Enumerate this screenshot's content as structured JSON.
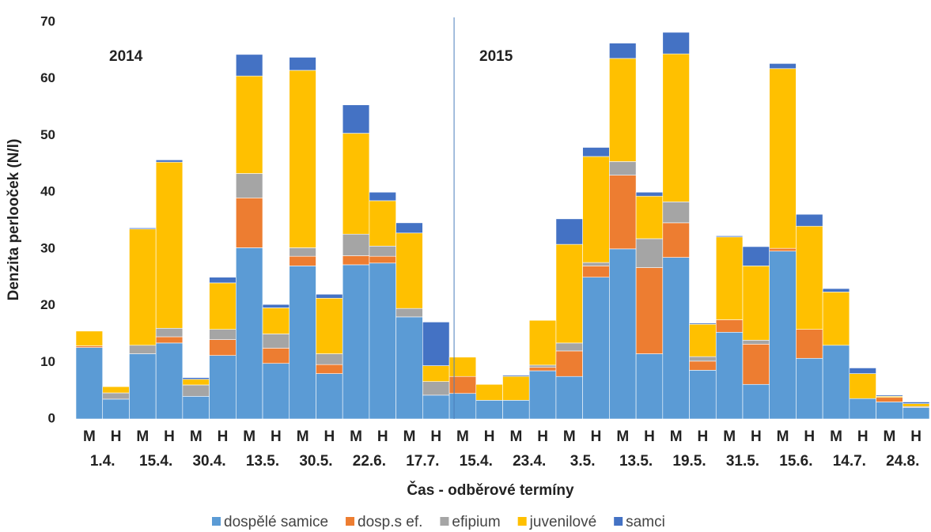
{
  "chart_data": {
    "type": "stacked_bar",
    "ylabel": "Denzita perlooček (N/l)",
    "xlabel": "Čas - odběrové termíny",
    "annotations": [
      "2014",
      "2015"
    ],
    "categories": [
      "M",
      "H",
      "M",
      "H",
      "M",
      "H",
      "M",
      "H",
      "M",
      "H",
      "M",
      "H",
      "M",
      "H",
      "M",
      "H",
      "M",
      "H",
      "M",
      "H",
      "M",
      "H",
      "M",
      "H",
      "M",
      "H",
      "M",
      "H",
      "M",
      "H",
      "M",
      "H"
    ],
    "groups": [
      "1.4.",
      "15.4.",
      "30.4.",
      "13.5.",
      "30.5.",
      "22.6.",
      "17.7.",
      "15.4.",
      "23.4.",
      "3.5.",
      "13.5.",
      "19.5.",
      "31.5.",
      "15.6.",
      "14.7.",
      "24.8."
    ],
    "ylim": [
      0,
      70
    ],
    "yticks": [
      0,
      10,
      20,
      30,
      40,
      50,
      60,
      70
    ],
    "legend": "bottom",
    "series": [
      {
        "name": "dospělé samice",
        "color": "#5b9bd5",
        "values": [
          12.6,
          3.5,
          11.5,
          13.4,
          4,
          11.2,
          30.2,
          9.8,
          27,
          8,
          27.2,
          27.5,
          18,
          4.2,
          4.5,
          3.3,
          3.3,
          8.5,
          7.5,
          25,
          30,
          11.5,
          28.5,
          8.6,
          15.3,
          6.1,
          29.6,
          10.7,
          13,
          3.6,
          3,
          2
        ]
      },
      {
        "name": "dosp.s ef.",
        "color": "#ed7d31",
        "values": [
          0.3,
          0,
          0,
          1.1,
          0,
          2.8,
          8.8,
          2.7,
          1.7,
          1.6,
          1.6,
          1.2,
          0,
          0,
          3,
          0,
          0,
          0.6,
          4.5,
          2,
          13,
          15.2,
          6.1,
          1.6,
          2.2,
          7.1,
          0.5,
          5.1,
          0,
          0,
          0.8,
          0
        ]
      },
      {
        "name": "efipium",
        "color": "#a5a5a5",
        "values": [
          0,
          1.1,
          1.5,
          1.5,
          2,
          1.8,
          4.3,
          2.5,
          1.5,
          1.9,
          3.8,
          1.8,
          1.5,
          2.4,
          0,
          0,
          0,
          0.4,
          1.4,
          0.6,
          2.4,
          5.1,
          3.7,
          0.8,
          0,
          0.7,
          0,
          0,
          0,
          0,
          0,
          0.2
        ]
      },
      {
        "name": "juvenilové",
        "color": "#ffc000",
        "values": [
          2.6,
          1.1,
          20.5,
          29.3,
          1,
          8.2,
          17.2,
          4.6,
          31.3,
          9.8,
          17.8,
          8,
          13.3,
          2.8,
          3.4,
          2.8,
          4.2,
          7.9,
          17.4,
          18.7,
          18.2,
          7.5,
          26.1,
          5.7,
          14.6,
          13.1,
          31.7,
          18.2,
          9.4,
          4.4,
          0.2,
          0.5
        ]
      },
      {
        "name": "samci",
        "color": "#4472c4",
        "values": [
          0,
          0,
          0.2,
          0.4,
          0.3,
          1,
          3.8,
          0.6,
          2.3,
          0.7,
          5,
          1.5,
          1.8,
          7.7,
          0,
          0,
          0.2,
          0,
          4.5,
          1.6,
          2.7,
          0.7,
          3.8,
          0.2,
          0.2,
          3.4,
          0.9,
          2.1,
          0.6,
          1,
          0.2,
          0.3
        ]
      }
    ]
  }
}
